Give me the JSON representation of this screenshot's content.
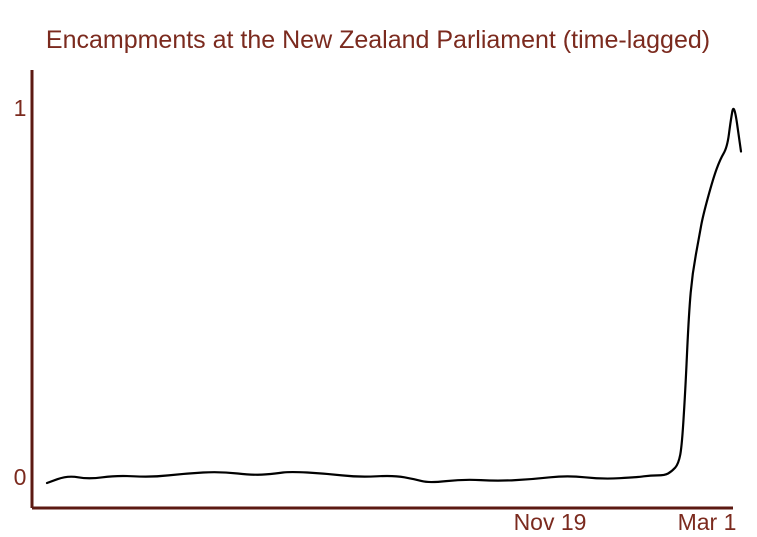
{
  "colors": {
    "accent": "#7b2a1e",
    "axis": "#5c1a12",
    "line": "#000000",
    "background": "#ffffff"
  },
  "chart_data": {
    "type": "line",
    "title": "Encampments at the New Zealand Parliament (time-lagged)",
    "xlabel": "",
    "ylabel": "",
    "ylim": [
      0,
      1
    ],
    "grid": false,
    "legend": "none",
    "x_tick_labels": [
      "Nov 19",
      "Mar 1"
    ],
    "y_tick_labels": [
      "0",
      "1"
    ],
    "series": [
      {
        "style": "hand-drawn",
        "x": [
          0.0,
          0.03,
          0.06,
          0.1,
          0.15,
          0.2,
          0.25,
          0.3,
          0.33,
          0.35,
          0.4,
          0.45,
          0.5,
          0.53,
          0.55,
          0.6,
          0.65,
          0.7,
          0.75,
          0.8,
          0.85,
          0.87,
          0.89,
          0.9,
          0.91,
          0.915,
          0.92,
          0.925,
          0.93,
          0.94,
          0.945,
          0.96,
          0.97,
          0.98,
          0.985,
          0.99,
          1.0
        ],
        "y": [
          0.0,
          0.02,
          0.01,
          0.02,
          0.015,
          0.025,
          0.03,
          0.02,
          0.025,
          0.03,
          0.025,
          0.015,
          0.02,
          0.01,
          0.0,
          0.01,
          0.005,
          0.01,
          0.02,
          0.01,
          0.015,
          0.02,
          0.02,
          0.03,
          0.05,
          0.1,
          0.25,
          0.45,
          0.55,
          0.65,
          0.7,
          0.8,
          0.85,
          0.88,
          0.95,
          1.0,
          0.87
        ]
      }
    ]
  }
}
